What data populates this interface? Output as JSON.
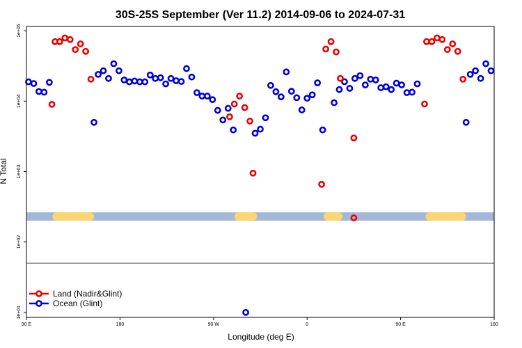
{
  "chart_data": {
    "type": "scatter",
    "title": "30S-25S September (Ver 11.2)   2014-09-06 to 2024-07-31",
    "xlabel": "Longitude (deg E)",
    "ylabel": "N Total",
    "x_ticks": [
      {
        "value": 90,
        "label": "90 E"
      },
      {
        "value": 180,
        "label": "180"
      },
      {
        "value": 270,
        "label": "90 W"
      },
      {
        "value": 360,
        "label": "0"
      },
      {
        "value": 450,
        "label": "90 E"
      },
      {
        "value": 540,
        "label": "180"
      }
    ],
    "y_ticks": [
      {
        "value": 10,
        "label": "1e+01"
      },
      {
        "value": 100,
        "label": "1e+02"
      },
      {
        "value": 1000,
        "label": "1e+03"
      },
      {
        "value": 10000,
        "label": "1e+04"
      },
      {
        "value": 100000,
        "label": "1e+05"
      }
    ],
    "xlim": [
      90,
      540
    ],
    "ylim": [
      8.5,
      115000
    ],
    "y_scale": "log",
    "reference_line_y": 50,
    "land_band": {
      "y": 230,
      "ocean_color": "#a3b8d6",
      "land_color": "#fcd673",
      "land_segments": [
        [
          115,
          155
        ],
        [
          290,
          312
        ],
        [
          376,
          394
        ],
        [
          474,
          513
        ]
      ]
    },
    "series": [
      {
        "name": "Land (Nadir&Glint)",
        "color": "#ee0000",
        "points": [
          [
            114.5,
            9000
          ],
          [
            117.5,
            70000
          ],
          [
            122,
            70000
          ],
          [
            127,
            79000
          ],
          [
            132,
            75000
          ],
          [
            137,
            54000
          ],
          [
            142,
            65000
          ],
          [
            147,
            51000
          ],
          [
            152,
            20500
          ],
          [
            285.5,
            6000
          ],
          [
            290,
            9100
          ],
          [
            295,
            11800
          ],
          [
            300,
            8100
          ],
          [
            305,
            5200
          ],
          [
            308,
            950
          ],
          [
            374,
            660
          ],
          [
            378,
            55000
          ],
          [
            383,
            70000
          ],
          [
            388,
            50000
          ],
          [
            392,
            21000
          ],
          [
            405,
            3000
          ],
          [
            405,
            220
          ],
          [
            473,
            9100
          ],
          [
            475,
            70000
          ],
          [
            480,
            70000
          ],
          [
            485,
            79000
          ],
          [
            490,
            75000
          ],
          [
            495,
            54000
          ],
          [
            500,
            65000
          ],
          [
            505,
            51000
          ],
          [
            510,
            20500
          ]
        ]
      },
      {
        "name": "Ocean (Glint)",
        "color": "#0000dd",
        "points": [
          [
            92,
            18800
          ],
          [
            97,
            17800
          ],
          [
            102,
            13700
          ],
          [
            107,
            13400
          ],
          [
            112,
            18500
          ],
          [
            155,
            5000
          ],
          [
            159,
            24000
          ],
          [
            164,
            27000
          ],
          [
            169,
            21000
          ],
          [
            174,
            34000
          ],
          [
            179,
            27000
          ],
          [
            184,
            20000
          ],
          [
            189,
            18800
          ],
          [
            194,
            19300
          ],
          [
            199,
            18800
          ],
          [
            204,
            18800
          ],
          [
            209,
            23500
          ],
          [
            214,
            21000
          ],
          [
            219,
            21500
          ],
          [
            224,
            17600
          ],
          [
            229,
            21000
          ],
          [
            234,
            19500
          ],
          [
            239,
            19000
          ],
          [
            244,
            29000
          ],
          [
            249,
            22000
          ],
          [
            254,
            13200
          ],
          [
            259,
            11800
          ],
          [
            264,
            11800
          ],
          [
            269,
            10500
          ],
          [
            274,
            7400
          ],
          [
            279,
            5400
          ],
          [
            284,
            7900
          ],
          [
            289,
            3900
          ],
          [
            301,
            10
          ],
          [
            310,
            3500
          ],
          [
            315,
            4000
          ],
          [
            320,
            5800
          ],
          [
            325,
            16700
          ],
          [
            330,
            13600
          ],
          [
            335,
            11500
          ],
          [
            340,
            26000
          ],
          [
            345,
            13800
          ],
          [
            350,
            11200
          ],
          [
            355,
            7500
          ],
          [
            360,
            11000
          ],
          [
            365,
            12300
          ],
          [
            370,
            18200
          ],
          [
            375,
            3900
          ],
          [
            386,
            9500
          ],
          [
            391,
            14600
          ],
          [
            396,
            18900
          ],
          [
            401,
            15200
          ],
          [
            406,
            21000
          ],
          [
            411,
            23000
          ],
          [
            416,
            17000
          ],
          [
            421,
            20500
          ],
          [
            426,
            20000
          ],
          [
            431,
            15500
          ],
          [
            436,
            16000
          ],
          [
            441,
            14600
          ],
          [
            446,
            18000
          ],
          [
            451,
            17000
          ],
          [
            456,
            13200
          ],
          [
            461,
            13400
          ],
          [
            466,
            17600
          ],
          [
            513,
            5000
          ],
          [
            517,
            24000
          ],
          [
            522,
            27000
          ],
          [
            527,
            21000
          ],
          [
            532,
            34000
          ],
          [
            537,
            27000
          ]
        ]
      }
    ],
    "legend": {
      "placement": "bottom-left",
      "entries": [
        "Land (Nadir&Glint)",
        "Ocean (Glint)"
      ]
    }
  }
}
